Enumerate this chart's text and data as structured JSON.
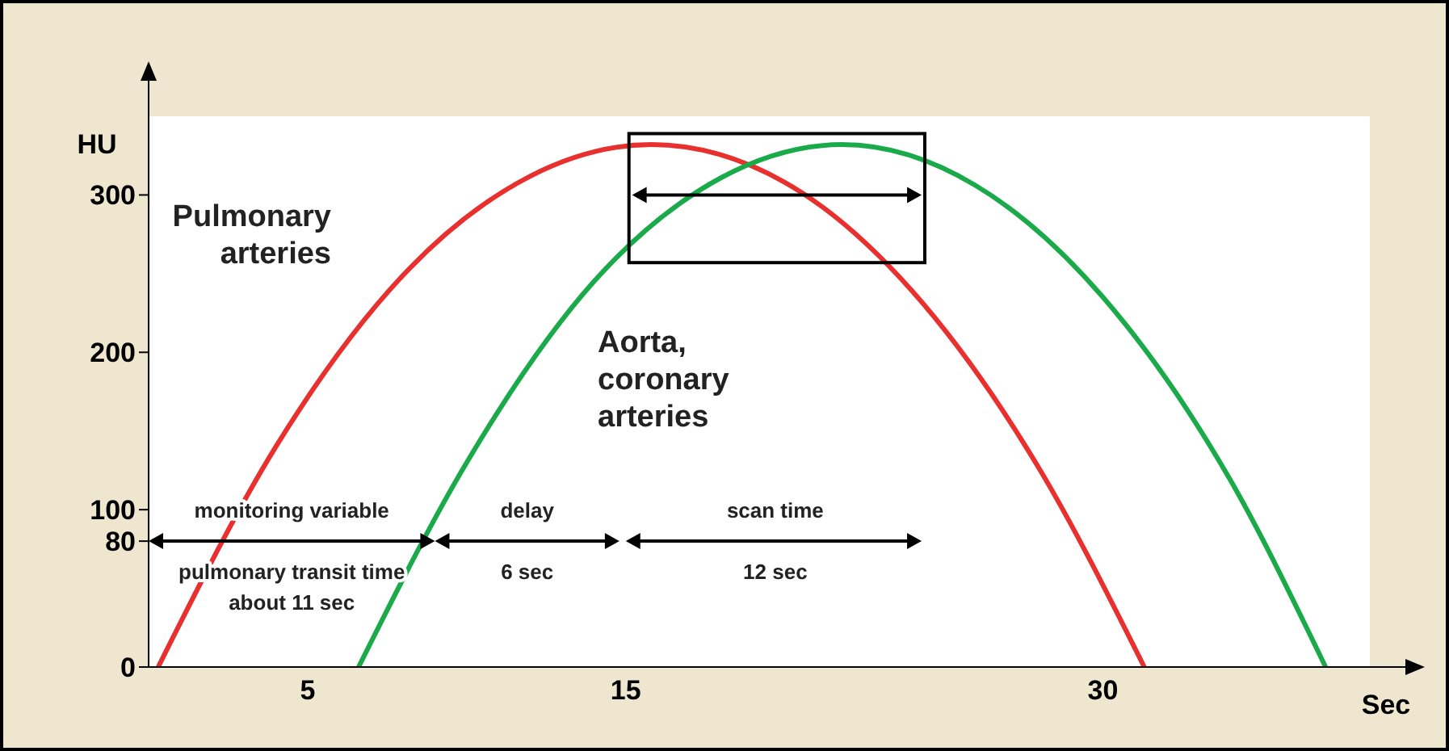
{
  "chart_data": {
    "type": "line",
    "xlabel": "Sec",
    "ylabel": "HU",
    "xlim": [
      0,
      39
    ],
    "xticks": [
      5,
      15,
      30
    ],
    "ylim": [
      0,
      350
    ],
    "yticks": [
      0,
      80,
      100,
      200,
      300
    ],
    "grid": false,
    "legend": false,
    "marker": "none",
    "line_style": "solid",
    "series": [
      {
        "name": "Pulmonary arteries",
        "color": "#e8302f",
        "x": [
          0.3,
          4,
          8,
          12,
          15.8,
          20,
          24,
          28,
          31.3
        ],
        "values": [
          0,
          140,
          249,
          312,
          332,
          308,
          239,
          126,
          0
        ]
      },
      {
        "name": "Aorta, coronary arteries",
        "color": "#1aaa4a",
        "x": [
          6.6,
          10,
          14,
          18,
          21.8,
          26,
          30,
          34,
          37
        ],
        "values": [
          0,
          130,
          245,
          311,
          332,
          306,
          235,
          119,
          0
        ]
      }
    ],
    "annotations": [
      "monitoring variable",
      "pulmonary transit time about 11 sec",
      "delay",
      "6 sec",
      "scan time",
      "12 sec"
    ]
  }
}
